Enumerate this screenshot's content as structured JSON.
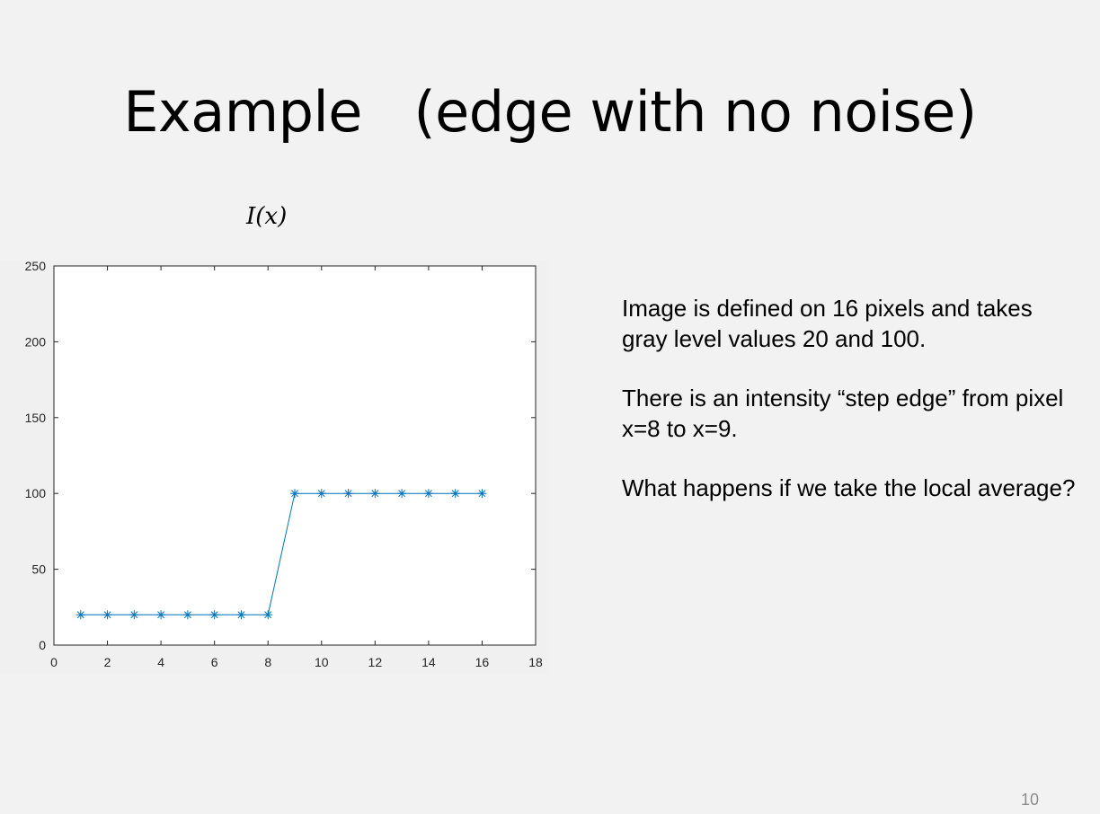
{
  "slide": {
    "title": "Example   (edge with no noise)",
    "body_paragraphs": [
      "Image is defined on 16 pixels and takes gray level values 20 and 100.",
      "There is an intensity “step edge” from pixel x=8 to x=9.",
      "What happens if we take the local average?"
    ],
    "page_number": "10"
  },
  "chart_data": {
    "type": "line",
    "title": "I(x)",
    "xlabel": "",
    "ylabel": "",
    "xlim": [
      0,
      18
    ],
    "ylim": [
      0,
      250
    ],
    "xticks": [
      0,
      2,
      4,
      6,
      8,
      10,
      12,
      14,
      16,
      18
    ],
    "yticks": [
      0,
      50,
      100,
      150,
      200,
      250
    ],
    "grid": false,
    "marker": "asterisk",
    "series_color": "#0072bd",
    "x": [
      1,
      2,
      3,
      4,
      5,
      6,
      7,
      8,
      9,
      10,
      11,
      12,
      13,
      14,
      15,
      16
    ],
    "values": [
      20,
      20,
      20,
      20,
      20,
      20,
      20,
      20,
      100,
      100,
      100,
      100,
      100,
      100,
      100,
      100
    ]
  }
}
